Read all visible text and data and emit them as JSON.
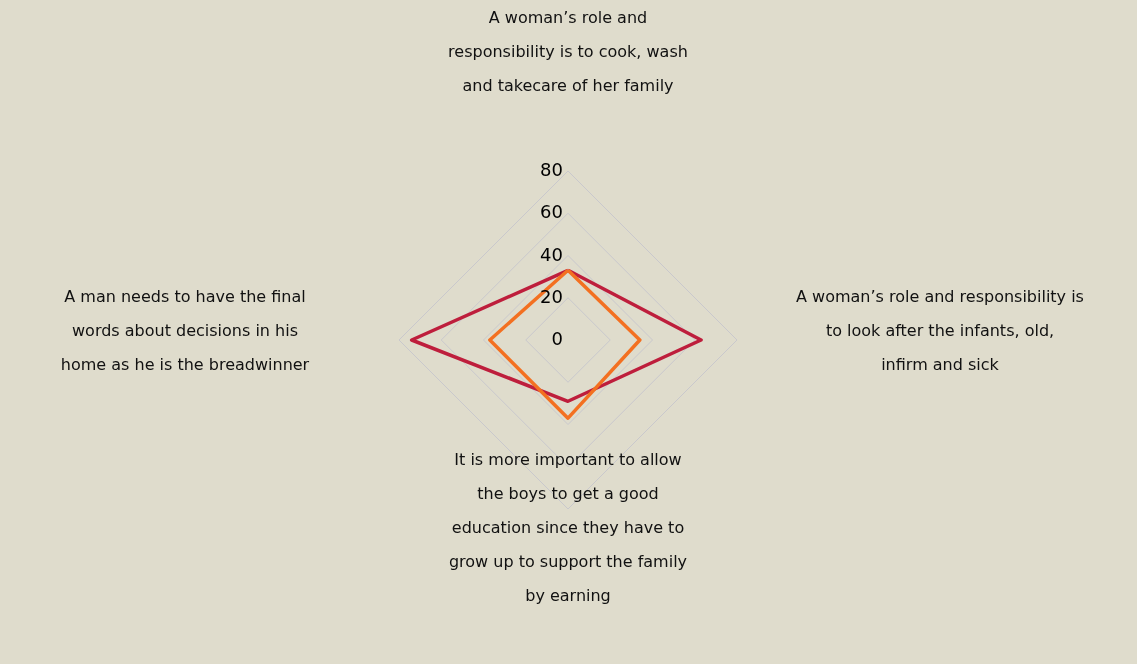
{
  "chart_data": {
    "type": "radar",
    "categories": [
      "A woman’s role and responsibility is to cook, wash and takecare of her family",
      "A woman’s role and responsibility is to look after the infants, old, infirm and sick",
      "It is more important to allow the boys to get a good education since they have to grow up to support the family by earning",
      "A man needs to have the final words about decisions in his home as he is the breadwinner"
    ],
    "series": [
      {
        "color": "#be1e3c",
        "values": [
          33,
          63,
          29,
          74
        ]
      },
      {
        "color": "#f37021",
        "values": [
          33,
          34,
          37,
          37
        ]
      }
    ],
    "ylim": [
      0,
      80
    ],
    "yticks": [
      0,
      20,
      40,
      60,
      80
    ],
    "grid": true,
    "marker": "none",
    "line_style": "solid"
  }
}
